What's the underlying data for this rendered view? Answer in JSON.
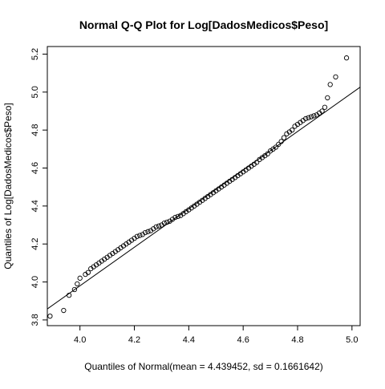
{
  "chart_data": {
    "type": "scatter",
    "title": "Normal Q-Q Plot for Log[DadosMedicos$Peso]",
    "xlabel": "Quantiles of Normal(mean = 4.439452, sd = 0.1661642)",
    "ylabel": "Quantiles of Log[DadosMedicos$Peso]",
    "xlim": [
      3.88,
      5.03
    ],
    "ylim": [
      3.77,
      5.24
    ],
    "xticks": [
      "4.0",
      "4.2",
      "4.4",
      "4.6",
      "4.8",
      "5.0"
    ],
    "xtick_values": [
      4.0,
      4.2,
      4.4,
      4.6,
      4.8,
      5.0
    ],
    "yticks": [
      "3.8",
      "4.0",
      "4.2",
      "4.4",
      "4.6",
      "4.8",
      "5.0",
      "5.2"
    ],
    "ytick_values": [
      3.8,
      4.0,
      4.2,
      4.4,
      4.6,
      4.8,
      5.0,
      5.2
    ],
    "reference_line": {
      "x1": 3.88,
      "y1": 3.858,
      "x2": 5.03,
      "y2": 5.026
    },
    "grid": false,
    "marker": "open-circle",
    "points": [
      [
        3.89,
        3.82
      ],
      [
        3.94,
        3.85
      ],
      [
        3.96,
        3.93
      ],
      [
        3.98,
        3.96
      ],
      [
        3.99,
        3.99
      ],
      [
        4.0,
        4.02
      ],
      [
        4.02,
        4.04
      ],
      [
        4.03,
        4.05
      ],
      [
        4.04,
        4.07
      ],
      [
        4.05,
        4.08
      ],
      [
        4.06,
        4.09
      ],
      [
        4.07,
        4.1
      ],
      [
        4.08,
        4.11
      ],
      [
        4.09,
        4.12
      ],
      [
        4.1,
        4.13
      ],
      [
        4.11,
        4.14
      ],
      [
        4.12,
        4.15
      ],
      [
        4.13,
        4.16
      ],
      [
        4.14,
        4.17
      ],
      [
        4.15,
        4.18
      ],
      [
        4.16,
        4.19
      ],
      [
        4.17,
        4.2
      ],
      [
        4.18,
        4.21
      ],
      [
        4.19,
        4.22
      ],
      [
        4.2,
        4.23
      ],
      [
        4.21,
        4.24
      ],
      [
        4.22,
        4.245
      ],
      [
        4.23,
        4.25
      ],
      [
        4.24,
        4.26
      ],
      [
        4.25,
        4.265
      ],
      [
        4.26,
        4.27
      ],
      [
        4.27,
        4.28
      ],
      [
        4.28,
        4.29
      ],
      [
        4.29,
        4.295
      ],
      [
        4.3,
        4.3
      ],
      [
        4.31,
        4.31
      ],
      [
        4.32,
        4.315
      ],
      [
        4.33,
        4.32
      ],
      [
        4.34,
        4.33
      ],
      [
        4.35,
        4.34
      ],
      [
        4.36,
        4.345
      ],
      [
        4.37,
        4.35
      ],
      [
        4.38,
        4.36
      ],
      [
        4.39,
        4.37
      ],
      [
        4.4,
        4.38
      ],
      [
        4.41,
        4.39
      ],
      [
        4.42,
        4.4
      ],
      [
        4.43,
        4.41
      ],
      [
        4.44,
        4.42
      ],
      [
        4.45,
        4.43
      ],
      [
        4.46,
        4.44
      ],
      [
        4.47,
        4.45
      ],
      [
        4.48,
        4.46
      ],
      [
        4.49,
        4.47
      ],
      [
        4.5,
        4.48
      ],
      [
        4.51,
        4.49
      ],
      [
        4.52,
        4.5
      ],
      [
        4.53,
        4.51
      ],
      [
        4.54,
        4.52
      ],
      [
        4.55,
        4.53
      ],
      [
        4.56,
        4.54
      ],
      [
        4.57,
        4.55
      ],
      [
        4.58,
        4.56
      ],
      [
        4.59,
        4.57
      ],
      [
        4.6,
        4.58
      ],
      [
        4.61,
        4.59
      ],
      [
        4.62,
        4.6
      ],
      [
        4.63,
        4.61
      ],
      [
        4.64,
        4.62
      ],
      [
        4.65,
        4.63
      ],
      [
        4.66,
        4.645
      ],
      [
        4.67,
        4.655
      ],
      [
        4.68,
        4.665
      ],
      [
        4.69,
        4.675
      ],
      [
        4.7,
        4.69
      ],
      [
        4.71,
        4.7
      ],
      [
        4.72,
        4.71
      ],
      [
        4.73,
        4.725
      ],
      [
        4.74,
        4.74
      ],
      [
        4.75,
        4.76
      ],
      [
        4.76,
        4.78
      ],
      [
        4.77,
        4.79
      ],
      [
        4.78,
        4.8
      ],
      [
        4.79,
        4.82
      ],
      [
        4.8,
        4.83
      ],
      [
        4.81,
        4.84
      ],
      [
        4.82,
        4.85
      ],
      [
        4.83,
        4.86
      ],
      [
        4.84,
        4.865
      ],
      [
        4.85,
        4.87
      ],
      [
        4.86,
        4.875
      ],
      [
        4.87,
        4.88
      ],
      [
        4.88,
        4.89
      ],
      [
        4.89,
        4.9
      ],
      [
        4.9,
        4.92
      ],
      [
        4.91,
        4.97
      ],
      [
        4.92,
        5.04
      ],
      [
        4.94,
        5.08
      ],
      [
        4.98,
        5.18
      ]
    ]
  }
}
